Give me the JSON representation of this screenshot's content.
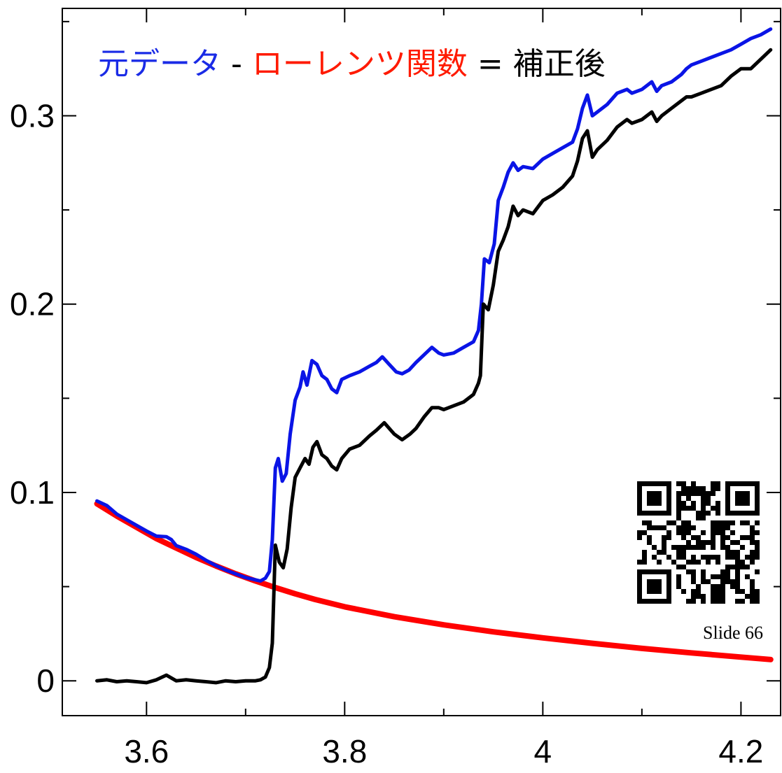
{
  "chart_data": {
    "type": "line",
    "title": "",
    "xlabel": "",
    "ylabel": "",
    "xlim": [
      3.515,
      4.24
    ],
    "ylim": [
      -0.0185,
      0.357
    ],
    "x_ticks": [
      3.6,
      3.8,
      4,
      4.2
    ],
    "x_tick_labels": [
      "3.6",
      "3.8",
      "4",
      "4.2"
    ],
    "y_ticks": [
      0,
      0.1,
      0.2,
      0.3
    ],
    "y_tick_labels": [
      "0",
      "0.1",
      "0.2",
      "0.3"
    ],
    "grid": false,
    "legend": {
      "placement": "top-left",
      "entries": [
        {
          "text": "元データ",
          "color": "#1a2be6"
        },
        {
          "text": " - ",
          "color": "#000000"
        },
        {
          "text": "ローレンツ関数",
          "color": "#ff1a00"
        },
        {
          "text": " = ",
          "color": "#000000"
        },
        {
          "text": "補正後",
          "color": "#000000"
        }
      ]
    },
    "series": [
      {
        "color": "#ff0000",
        "points": [
          [
            3.55,
            0.094
          ],
          [
            3.57,
            0.0875
          ],
          [
            3.59,
            0.0815
          ],
          [
            3.61,
            0.0755
          ],
          [
            3.63,
            0.0705
          ],
          [
            3.65,
            0.0655
          ],
          [
            3.67,
            0.061
          ],
          [
            3.69,
            0.0568
          ],
          [
            3.71,
            0.053
          ],
          [
            3.73,
            0.0495
          ],
          [
            3.75,
            0.0462
          ],
          [
            3.77,
            0.0432
          ],
          [
            3.8,
            0.0393
          ],
          [
            3.85,
            0.034
          ],
          [
            3.9,
            0.0297
          ],
          [
            3.95,
            0.026
          ],
          [
            4.0,
            0.0228
          ],
          [
            4.05,
            0.0199
          ],
          [
            4.1,
            0.0172
          ],
          [
            4.15,
            0.0148
          ],
          [
            4.2,
            0.0126
          ],
          [
            4.23,
            0.0113
          ]
        ]
      },
      {
        "color": "#0a14e6",
        "points": [
          [
            3.55,
            0.0955
          ],
          [
            3.56,
            0.093
          ],
          [
            3.57,
            0.0885
          ],
          [
            3.58,
            0.0855
          ],
          [
            3.59,
            0.0825
          ],
          [
            3.6,
            0.0795
          ],
          [
            3.61,
            0.0768
          ],
          [
            3.62,
            0.0765
          ],
          [
            3.625,
            0.075
          ],
          [
            3.63,
            0.0718
          ],
          [
            3.64,
            0.0698
          ],
          [
            3.65,
            0.0672
          ],
          [
            3.66,
            0.064
          ],
          [
            3.67,
            0.0612
          ],
          [
            3.68,
            0.0588
          ],
          [
            3.69,
            0.0568
          ],
          [
            3.7,
            0.0548
          ],
          [
            3.71,
            0.0536
          ],
          [
            3.715,
            0.053
          ],
          [
            3.72,
            0.0545
          ],
          [
            3.724,
            0.058
          ],
          [
            3.727,
            0.075
          ],
          [
            3.73,
            0.113
          ],
          [
            3.733,
            0.118
          ],
          [
            3.737,
            0.106
          ],
          [
            3.741,
            0.11
          ],
          [
            3.745,
            0.131
          ],
          [
            3.75,
            0.149
          ],
          [
            3.755,
            0.156
          ],
          [
            3.758,
            0.164
          ],
          [
            3.762,
            0.157
          ],
          [
            3.767,
            0.17
          ],
          [
            3.772,
            0.168
          ],
          [
            3.777,
            0.162
          ],
          [
            3.782,
            0.16
          ],
          [
            3.787,
            0.155
          ],
          [
            3.792,
            0.153
          ],
          [
            3.797,
            0.16
          ],
          [
            3.805,
            0.162
          ],
          [
            3.815,
            0.164
          ],
          [
            3.825,
            0.167
          ],
          [
            3.832,
            0.169
          ],
          [
            3.838,
            0.172
          ],
          [
            3.845,
            0.168
          ],
          [
            3.852,
            0.164
          ],
          [
            3.858,
            0.163
          ],
          [
            3.865,
            0.165
          ],
          [
            3.872,
            0.169
          ],
          [
            3.88,
            0.173
          ],
          [
            3.888,
            0.177
          ],
          [
            3.895,
            0.174
          ],
          [
            3.9,
            0.173
          ],
          [
            3.91,
            0.174
          ],
          [
            3.92,
            0.177
          ],
          [
            3.93,
            0.18
          ],
          [
            3.935,
            0.186
          ],
          [
            3.938,
            0.2
          ],
          [
            3.941,
            0.224
          ],
          [
            3.946,
            0.222
          ],
          [
            3.951,
            0.232
          ],
          [
            3.955,
            0.255
          ],
          [
            3.96,
            0.262
          ],
          [
            3.965,
            0.27
          ],
          [
            3.97,
            0.275
          ],
          [
            3.975,
            0.271
          ],
          [
            3.98,
            0.273
          ],
          [
            3.99,
            0.272
          ],
          [
            4.0,
            0.277
          ],
          [
            4.01,
            0.28
          ],
          [
            4.02,
            0.283
          ],
          [
            4.03,
            0.286
          ],
          [
            4.035,
            0.293
          ],
          [
            4.04,
            0.304
          ],
          [
            4.045,
            0.311
          ],
          [
            4.05,
            0.3
          ],
          [
            4.055,
            0.302
          ],
          [
            4.065,
            0.306
          ],
          [
            4.075,
            0.312
          ],
          [
            4.085,
            0.314
          ],
          [
            4.09,
            0.312
          ],
          [
            4.1,
            0.314
          ],
          [
            4.11,
            0.318
          ],
          [
            4.115,
            0.313
          ],
          [
            4.12,
            0.316
          ],
          [
            4.13,
            0.318
          ],
          [
            4.14,
            0.322
          ],
          [
            4.145,
            0.325
          ],
          [
            4.15,
            0.327
          ],
          [
            4.16,
            0.329
          ],
          [
            4.17,
            0.331
          ],
          [
            4.18,
            0.333
          ],
          [
            4.19,
            0.335
          ],
          [
            4.2,
            0.338
          ],
          [
            4.21,
            0.341
          ],
          [
            4.22,
            0.343
          ],
          [
            4.23,
            0.346
          ]
        ]
      },
      {
        "color": "#000000",
        "points": [
          [
            3.55,
            0.0
          ],
          [
            3.56,
            0.0005
          ],
          [
            3.57,
            -0.0005
          ],
          [
            3.58,
            0.0
          ],
          [
            3.59,
            -0.0005
          ],
          [
            3.6,
            -0.001
          ],
          [
            3.61,
            0.0005
          ],
          [
            3.62,
            0.003
          ],
          [
            3.63,
            0.0
          ],
          [
            3.64,
            0.0005
          ],
          [
            3.65,
            0.0
          ],
          [
            3.66,
            -0.0005
          ],
          [
            3.67,
            -0.001
          ],
          [
            3.68,
            0.0
          ],
          [
            3.69,
            -0.0005
          ],
          [
            3.7,
            0.0
          ],
          [
            3.71,
            0.0
          ],
          [
            3.715,
            0.0005
          ],
          [
            3.72,
            0.002
          ],
          [
            3.724,
            0.007
          ],
          [
            3.727,
            0.02
          ],
          [
            3.73,
            0.072
          ],
          [
            3.734,
            0.063
          ],
          [
            3.738,
            0.06
          ],
          [
            3.742,
            0.07
          ],
          [
            3.746,
            0.092
          ],
          [
            3.75,
            0.108
          ],
          [
            3.755,
            0.113
          ],
          [
            3.76,
            0.118
          ],
          [
            3.764,
            0.115
          ],
          [
            3.768,
            0.124
          ],
          [
            3.772,
            0.127
          ],
          [
            3.777,
            0.12
          ],
          [
            3.782,
            0.118
          ],
          [
            3.787,
            0.114
          ],
          [
            3.792,
            0.112
          ],
          [
            3.797,
            0.118
          ],
          [
            3.805,
            0.123
          ],
          [
            3.815,
            0.125
          ],
          [
            3.825,
            0.13
          ],
          [
            3.832,
            0.133
          ],
          [
            3.84,
            0.137
          ],
          [
            3.85,
            0.131
          ],
          [
            3.858,
            0.128
          ],
          [
            3.866,
            0.131
          ],
          [
            3.872,
            0.134
          ],
          [
            3.88,
            0.14
          ],
          [
            3.888,
            0.145
          ],
          [
            3.895,
            0.145
          ],
          [
            3.9,
            0.144
          ],
          [
            3.91,
            0.146
          ],
          [
            3.92,
            0.148
          ],
          [
            3.93,
            0.152
          ],
          [
            3.935,
            0.158
          ],
          [
            3.937,
            0.162
          ],
          [
            3.94,
            0.2
          ],
          [
            3.945,
            0.197
          ],
          [
            3.95,
            0.21
          ],
          [
            3.955,
            0.228
          ],
          [
            3.96,
            0.234
          ],
          [
            3.965,
            0.241
          ],
          [
            3.97,
            0.252
          ],
          [
            3.975,
            0.247
          ],
          [
            3.98,
            0.25
          ],
          [
            3.99,
            0.248
          ],
          [
            4.0,
            0.255
          ],
          [
            4.01,
            0.258
          ],
          [
            4.02,
            0.262
          ],
          [
            4.03,
            0.268
          ],
          [
            4.035,
            0.276
          ],
          [
            4.04,
            0.288
          ],
          [
            4.045,
            0.292
          ],
          [
            4.05,
            0.278
          ],
          [
            4.055,
            0.282
          ],
          [
            4.065,
            0.287
          ],
          [
            4.075,
            0.294
          ],
          [
            4.085,
            0.298
          ],
          [
            4.09,
            0.296
          ],
          [
            4.1,
            0.298
          ],
          [
            4.11,
            0.302
          ],
          [
            4.115,
            0.297
          ],
          [
            4.12,
            0.3
          ],
          [
            4.13,
            0.304
          ],
          [
            4.14,
            0.308
          ],
          [
            4.145,
            0.31
          ],
          [
            4.15,
            0.31
          ],
          [
            4.16,
            0.312
          ],
          [
            4.17,
            0.314
          ],
          [
            4.18,
            0.316
          ],
          [
            4.19,
            0.321
          ],
          [
            4.2,
            0.325
          ],
          [
            4.21,
            0.325
          ],
          [
            4.22,
            0.33
          ],
          [
            4.23,
            0.335
          ]
        ]
      }
    ]
  },
  "qr_icon": "qr-code-icon",
  "slide_label": "Slide 66"
}
